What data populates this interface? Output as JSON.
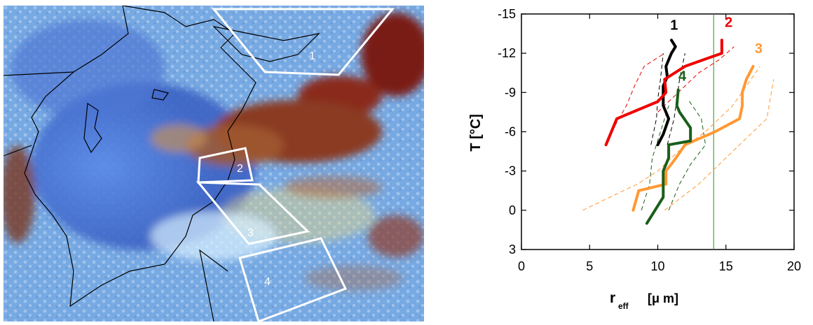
{
  "satellite_image": {
    "region_labels": [
      "1",
      "2",
      "3",
      "4"
    ],
    "colors": {
      "deep_blue": "#3a62c8",
      "cloud_red": "#8a2a1a",
      "outline": "#ffffff",
      "coast": "#000000"
    }
  },
  "chart_data": {
    "type": "line",
    "title": "",
    "xlabel": "r",
    "xlabel_sub": "eff",
    "xlabel_unit": "[μ m]",
    "ylabel": "T [°C]",
    "xlim": [
      0,
      20
    ],
    "ylim": [
      3,
      -15
    ],
    "xticks": [
      "0",
      "5",
      "10",
      "15",
      "20"
    ],
    "yticks": [
      "-15",
      "-12",
      "-9",
      "-6",
      "-3",
      "0",
      "3"
    ],
    "grid": false,
    "reference_line": {
      "x": 14.1,
      "color": "#1a9a1a"
    },
    "series": [
      {
        "name": "1",
        "color": "#000000",
        "points": [
          [
            10.0,
            -5
          ],
          [
            10.4,
            -5.8
          ],
          [
            10.8,
            -7
          ],
          [
            10.4,
            -8
          ],
          [
            10.4,
            -9.5
          ],
          [
            10.7,
            -10.2
          ],
          [
            10.6,
            -11
          ],
          [
            11.0,
            -12
          ],
          [
            11.3,
            -12.5
          ],
          [
            11.0,
            -13
          ]
        ],
        "band": [
          [
            [
              9.5,
              -5
            ],
            [
              9.9,
              -7
            ],
            [
              10.0,
              -8.5
            ],
            [
              10.2,
              -10
            ],
            [
              10.4,
              -12
            ]
          ],
          [
            [
              10.7,
              -5
            ],
            [
              11.2,
              -7
            ],
            [
              11.4,
              -8.5
            ],
            [
              11.6,
              -10
            ],
            [
              12.0,
              -12
            ]
          ]
        ]
      },
      {
        "name": "2",
        "color": "#ee0000",
        "points": [
          [
            6.2,
            -5
          ],
          [
            7.0,
            -7
          ],
          [
            10.0,
            -8.3
          ],
          [
            10.6,
            -9
          ],
          [
            10.5,
            -10
          ],
          [
            12.0,
            -11
          ],
          [
            14.7,
            -12
          ],
          [
            14.7,
            -13
          ]
        ],
        "band": [
          [
            [
              6.6,
              -6
            ],
            [
              7.7,
              -8
            ],
            [
              8.3,
              -9.5
            ],
            [
              9.0,
              -11
            ],
            [
              10.5,
              -12
            ]
          ],
          [
            [
              10.0,
              -7.5
            ],
            [
              11.5,
              -9
            ],
            [
              13.0,
              -10.5
            ],
            [
              14.5,
              -11.5
            ],
            [
              15.6,
              -12.5
            ]
          ]
        ]
      },
      {
        "name": "3",
        "color": "#ff9933",
        "points": [
          [
            8.2,
            0
          ],
          [
            8.6,
            -1.5
          ],
          [
            10.6,
            -2
          ],
          [
            10.6,
            -3
          ],
          [
            11.2,
            -3.8
          ],
          [
            12.0,
            -5
          ],
          [
            14.2,
            -6
          ],
          [
            16.0,
            -7
          ],
          [
            16.2,
            -8
          ],
          [
            16.2,
            -9
          ],
          [
            16.5,
            -10
          ],
          [
            17.0,
            -11
          ]
        ],
        "band": [
          [
            [
              4.5,
              0
            ],
            [
              8.5,
              -2
            ],
            [
              10.0,
              -3
            ],
            [
              11.5,
              -4.5
            ],
            [
              13.5,
              -6
            ],
            [
              15.5,
              -8
            ],
            [
              17.5,
              -11
            ]
          ],
          [
            [
              10.5,
              0
            ],
            [
              13.0,
              -2
            ],
            [
              15.0,
              -4
            ],
            [
              17.0,
              -6
            ],
            [
              18.0,
              -7
            ],
            [
              18.5,
              -10
            ]
          ]
        ]
      },
      {
        "name": "4",
        "color": "#1a5e1a",
        "points": [
          [
            9.2,
            1
          ],
          [
            9.8,
            0
          ],
          [
            10.4,
            -1
          ],
          [
            10.4,
            -3
          ],
          [
            10.8,
            -4
          ],
          [
            10.8,
            -5
          ],
          [
            12.4,
            -5.3
          ],
          [
            12.4,
            -6.3
          ],
          [
            11.6,
            -7.5
          ],
          [
            11.4,
            -8
          ],
          [
            11.5,
            -9.2
          ]
        ],
        "band": [
          [
            [
              8.8,
              0
            ],
            [
              9.4,
              -2
            ],
            [
              9.6,
              -4
            ],
            [
              10.2,
              -6
            ],
            [
              10.8,
              -8
            ]
          ],
          [
            [
              10.8,
              0
            ],
            [
              11.6,
              -2
            ],
            [
              12.4,
              -3.5
            ],
            [
              13.5,
              -5
            ],
            [
              13.2,
              -7
            ],
            [
              12.2,
              -8.5
            ]
          ]
        ]
      }
    ]
  }
}
